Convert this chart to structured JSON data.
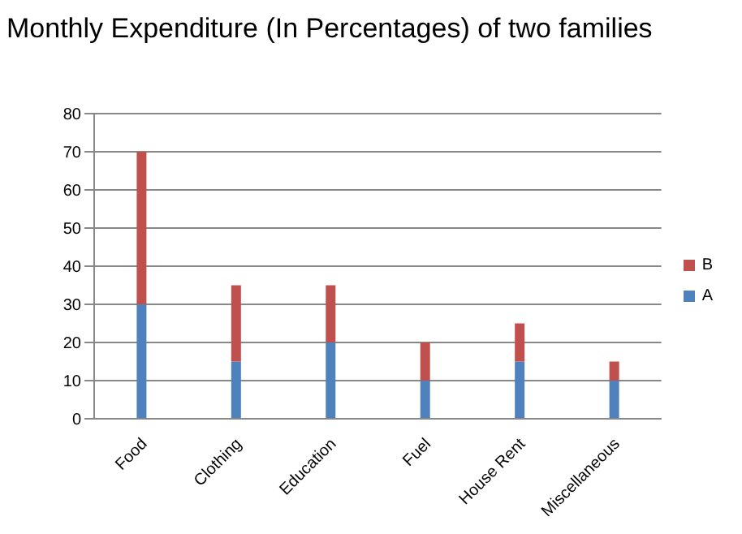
{
  "chart_data": {
    "type": "bar",
    "title": "Monthly Expenditure (In Percentages) of two families",
    "categories": [
      "Food",
      "Clothing",
      "Education",
      "Fuel",
      "House Rent",
      "Miscellaneous"
    ],
    "stacked": true,
    "series": [
      {
        "name": "A",
        "color": "#4f81bd",
        "values": [
          30,
          15,
          20,
          10,
          15,
          10
        ]
      },
      {
        "name": "B",
        "color": "#c0504d",
        "values": [
          40,
          20,
          15,
          10,
          10,
          5
        ]
      }
    ],
    "ylim": [
      0,
      80
    ],
    "yticks": [
      0,
      10,
      20,
      30,
      40,
      50,
      60,
      70,
      80
    ],
    "grid": "y",
    "legend": "right"
  }
}
